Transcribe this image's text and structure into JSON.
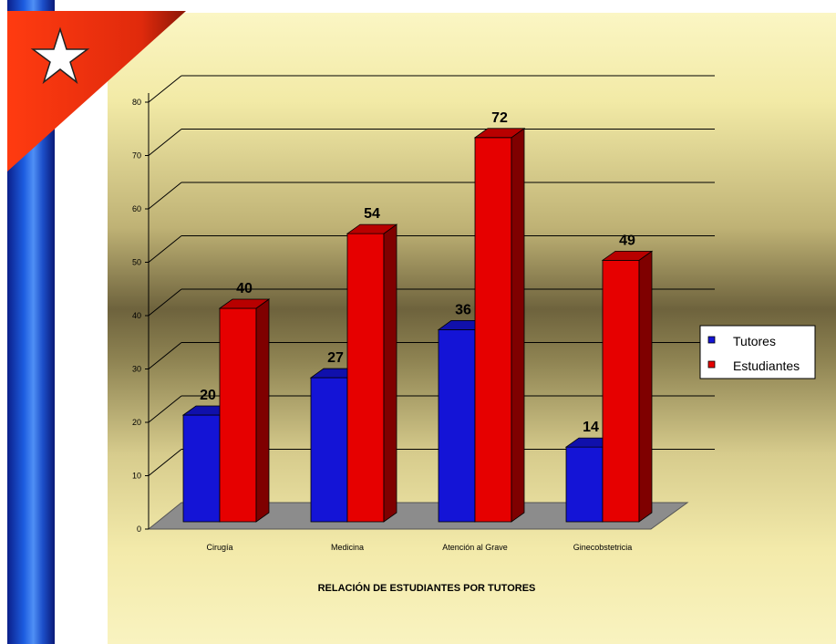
{
  "chart_data": {
    "type": "bar",
    "title": "",
    "xlabel": "RELACIÓN DE ESTUDIANTES POR TUTORES",
    "ylabel": "",
    "ylim": [
      0,
      80
    ],
    "yticks": [
      "0",
      "10",
      "20",
      "30",
      "40",
      "50",
      "60",
      "70",
      "80"
    ],
    "categories": [
      "Cirugía",
      "Medicina",
      "Atención al Grave",
      "Ginecobstetricia"
    ],
    "series": [
      {
        "name": "Tutores",
        "values": [
          20,
          27,
          36,
          14
        ],
        "color": "#1414d6"
      },
      {
        "name": "Estudiantes",
        "values": [
          40,
          54,
          72,
          49
        ],
        "color": "#e60000"
      }
    ],
    "legend_position": "right",
    "grid": true,
    "three_d": true
  },
  "colors": {
    "flag_red": "#e83010",
    "flag_star": "#ffffff",
    "flag_blue": "#1d5de0",
    "floor": "#8c8c8c"
  },
  "icons": {
    "flag": "cuban-flag-star-icon"
  }
}
